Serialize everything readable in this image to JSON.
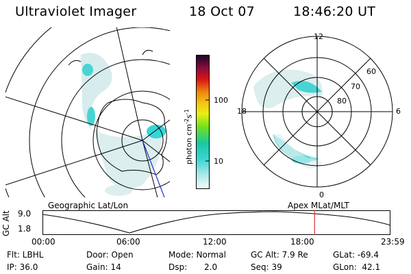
{
  "header": {
    "instrument": "Ultraviolet Imager",
    "date": "18 Oct 07",
    "time": "18:46:20 UT"
  },
  "colorbar": {
    "unit_label": "photon cm",
    "unit_sup1": "-2",
    "unit_mid": "s",
    "unit_sup2": "-1",
    "ticks": [
      "100",
      "10"
    ]
  },
  "left_panel": {
    "caption": "Geographic Lat/Lon"
  },
  "right_panel": {
    "caption": "Apex MLat/MLT",
    "mlt_labels": [
      "12",
      "18",
      "6",
      "0"
    ],
    "mlat_labels": [
      "60",
      "70",
      "80"
    ]
  },
  "timeline": {
    "ylabel": "GC Alt",
    "yticks": [
      "9.0",
      "1.8"
    ],
    "xticks": [
      "00:00",
      "06:00",
      "12:00",
      "18:00",
      "23:59"
    ],
    "current_fraction": 0.782
  },
  "status": {
    "filter": "Flt: LBHL",
    "ip": "IP: 36.0",
    "door": "Door: Open",
    "gain": "Gain: 14",
    "mode": "Mode: Normal",
    "dsp_label": "Dsp:",
    "dsp_value": "2.0",
    "gc_alt": "GC Alt: 7.9 Re",
    "seq": "Seq: 39",
    "glat": "GLat: -69.4",
    "glon": "GLon:  42.1"
  },
  "colors": {
    "aurora": "#35d6d6",
    "background_intensity": "#cfe8e8",
    "marker": "#e03030"
  }
}
